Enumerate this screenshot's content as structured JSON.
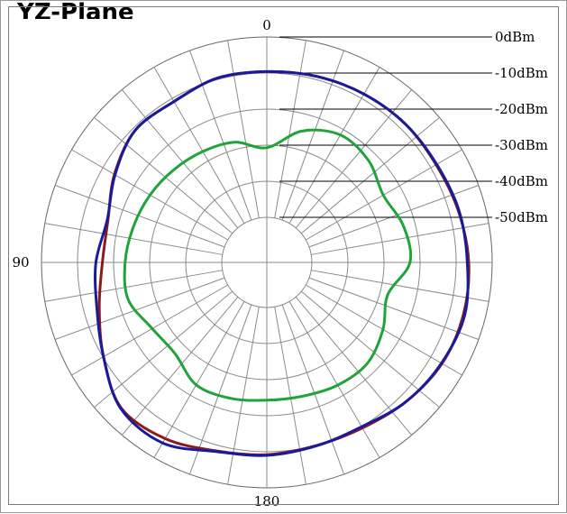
{
  "chart_data": {
    "type": "polar-line",
    "title": "YZ-Plane",
    "angle_unit": "deg",
    "angle_labels": [
      {
        "angle": 0,
        "text": "0"
      },
      {
        "angle": 90,
        "text": "90"
      },
      {
        "angle": 180,
        "text": "180"
      }
    ],
    "angle_grid_step_deg": 10,
    "radial_range_dbm": [
      -50,
      0
    ],
    "ring_labels": [
      "0dBm",
      "-10dBm",
      "-20dBm",
      "-30dBm",
      "-40dBm",
      "-50dBm"
    ],
    "ring_values": [
      0,
      -10,
      -20,
      -30,
      -40,
      -50
    ],
    "grid": true,
    "series": [
      {
        "color": "#8b1a1a",
        "angles": [
          0,
          15,
          30,
          45,
          60,
          75,
          90,
          105,
          120,
          135,
          150,
          165,
          180,
          195,
          210,
          225,
          240,
          255,
          270,
          285,
          300,
          315,
          330,
          345,
          360
        ],
        "values": [
          -9.6,
          -9.6,
          -11.0,
          -10.8,
          -13.7,
          -16.9,
          -16.9,
          -14.4,
          -10.2,
          -5.4,
          -6.1,
          -8.4,
          -9.2,
          -9.9,
          -9.5,
          -7.9,
          -6.4,
          -6.1,
          -6.5,
          -7.5,
          -8.3,
          -8.2,
          -8.6,
          -9.1,
          -9.6
        ]
      },
      {
        "color": "#1a1a9c",
        "angles": [
          0,
          15,
          30,
          45,
          60,
          75,
          90,
          105,
          120,
          135,
          150,
          165,
          180,
          195,
          210,
          225,
          240,
          255,
          270,
          285,
          300,
          315,
          330,
          345,
          360
        ],
        "values": [
          -9.6,
          -9.6,
          -11.0,
          -10.8,
          -13.9,
          -16.7,
          -15.1,
          -13.7,
          -10.2,
          -5.2,
          -4.7,
          -8.2,
          -9.0,
          -9.8,
          -9.9,
          -7.9,
          -6.6,
          -5.7,
          -6.9,
          -7.3,
          -8.1,
          -8.2,
          -8.6,
          -9.1,
          -9.6
        ]
      },
      {
        "color": "#1fa33a",
        "angles": [
          0,
          15,
          30,
          45,
          60,
          75,
          90,
          105,
          120,
          135,
          150,
          165,
          180,
          195,
          210,
          225,
          240,
          255,
          270,
          285,
          300,
          315,
          330,
          345,
          360
        ],
        "values": [
          -30.7,
          -28.0,
          -27.0,
          -26.1,
          -25.1,
          -24.2,
          -23.2,
          -22.7,
          -25.8,
          -26.6,
          -23.3,
          -23.5,
          -24.3,
          -24.1,
          -23.2,
          -23.0,
          -25.3,
          -27.8,
          -22.8,
          -23.3,
          -25.2,
          -22.6,
          -21.7,
          -24.8,
          -30.7
        ]
      }
    ]
  }
}
